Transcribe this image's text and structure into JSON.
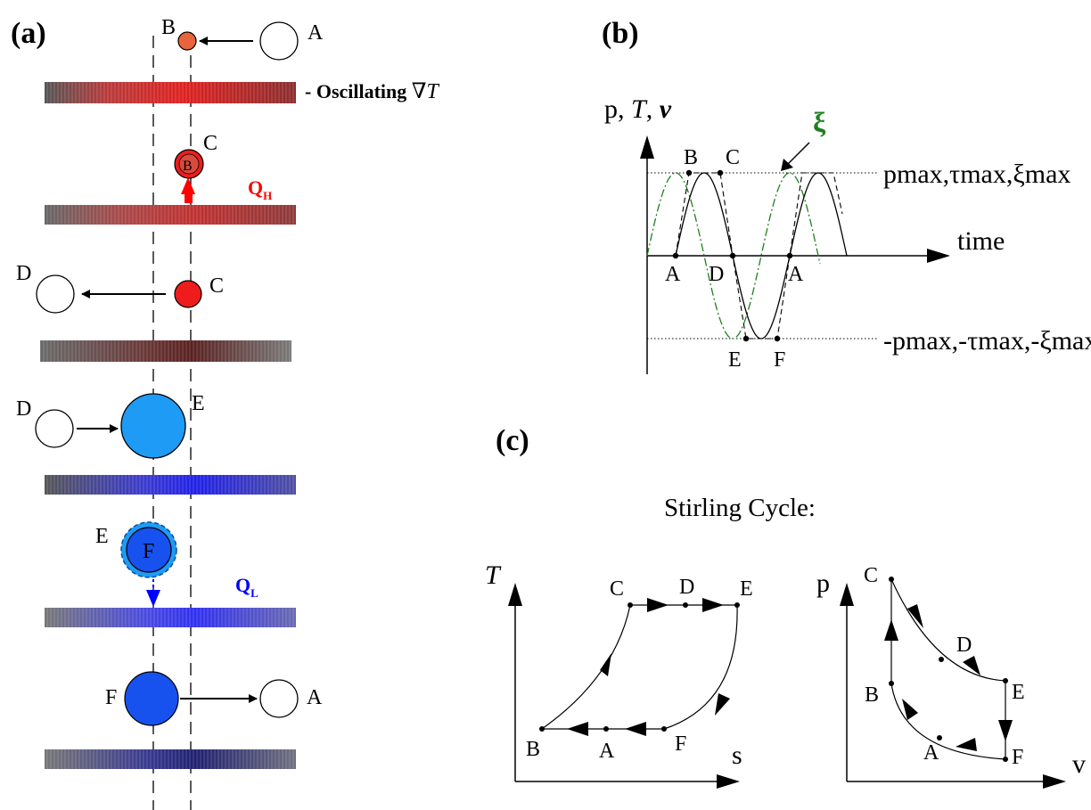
{
  "panel_a": {
    "label": "(a)",
    "oscillating_text": "- Oscillating ",
    "oscillating_symbol": "∇T",
    "qh_main": "Q",
    "qh_sub": "H",
    "ql_main": "Q",
    "ql_sub": "L",
    "row1": {
      "left": "B",
      "right": "A"
    },
    "row2": {
      "inner": "B",
      "right": "C"
    },
    "row3": {
      "left": "D",
      "right": "C"
    },
    "row4": {
      "left": "D",
      "right": "E"
    },
    "row5": {
      "left": "E",
      "inner": "F"
    },
    "row6": {
      "left": "F",
      "right": "A"
    },
    "colors": {
      "hot": "#e8643c",
      "hot_red": "#ee1c1c",
      "light_blue": "#1e9bf5",
      "blue": "#1852ee",
      "qh": "#ff0000",
      "ql": "#0000ff"
    }
  },
  "panel_b": {
    "label": "(b)",
    "ylabel_plain": "p, ",
    "ylabel_T": "T",
    "ylabel_sep": ", ",
    "ylabel_v": "v",
    "xi_label": "ξ",
    "xlabel": "time",
    "max_label": "pmax,τmax,ξmax",
    "min_label": "-pmax,-τmax,-ξmax",
    "points": {
      "A1": "A",
      "B": "B",
      "C": "C",
      "D": "D",
      "E": "E",
      "F": "F",
      "A2": "A"
    },
    "xi_color": "#1f7f1f"
  },
  "panel_c": {
    "label": "(c)",
    "title": "Stirling Cycle:",
    "ts": {
      "ylabel": "T",
      "xlabel": "s",
      "points": {
        "B": "B",
        "A": "A",
        "F": "F",
        "C": "C",
        "D": "D",
        "E": "E"
      }
    },
    "pv": {
      "ylabel": "p",
      "xlabel": "v",
      "points": {
        "C": "C",
        "D": "D",
        "E": "E",
        "B": "B",
        "A": "A",
        "F": "F"
      }
    }
  }
}
